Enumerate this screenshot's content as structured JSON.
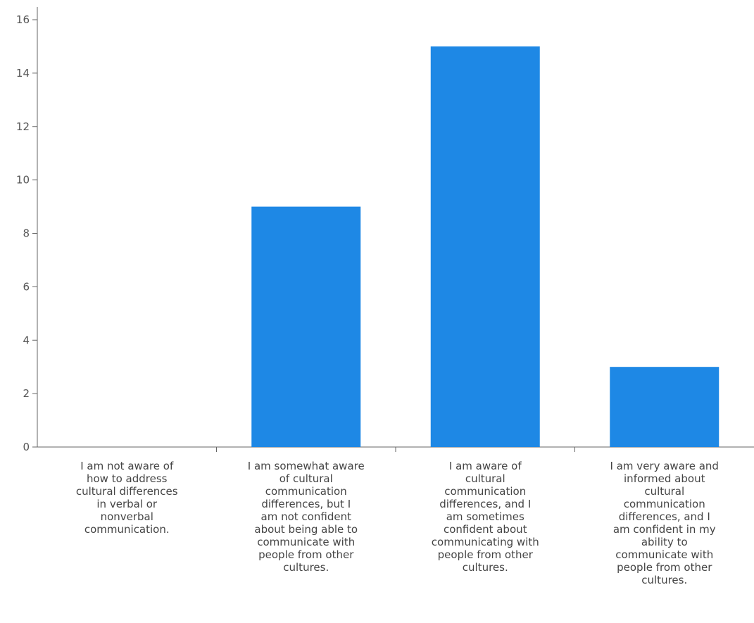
{
  "chart_data": {
    "type": "bar",
    "title": "",
    "xlabel": "",
    "ylabel": "",
    "ylim": [
      0,
      16
    ],
    "yticks": [
      0,
      2,
      4,
      6,
      8,
      10,
      12,
      14,
      16
    ],
    "grid": false,
    "legend": "none",
    "bar_color": "#1e88e5",
    "categories": [
      "I am not aware of how to address cultural differences in verbal or nonverbal communication.",
      "I am somewhat aware of cultural communication differences, but I am not confident about being able to communicate with people from other cultures.",
      "I am aware of cultural communication differences, and I am sometimes confident about communicating with people from other cultures.",
      "I am very aware and informed about cultural communication differences, and I am confident in my ability to communicate with people from other cultures."
    ],
    "category_lines": [
      [
        "I am not aware of",
        "how to address",
        "cultural differences",
        "in verbal or",
        "nonverbal",
        "communication."
      ],
      [
        "I am somewhat aware",
        "of cultural",
        "communication",
        "differences, but I",
        "am not confident",
        "about being able to",
        "communicate with",
        "people from other",
        "cultures."
      ],
      [
        "I am aware of",
        "cultural",
        "communication",
        "differences, and I",
        "am sometimes",
        "confident about",
        "communicating with",
        "people from other",
        "cultures."
      ],
      [
        "I am very aware and",
        "informed about",
        "cultural",
        "communication",
        "differences, and I",
        "am confident in my",
        "ability to",
        "communicate with",
        "people from other",
        "cultures."
      ]
    ],
    "values": [
      0,
      9,
      15,
      3
    ]
  }
}
